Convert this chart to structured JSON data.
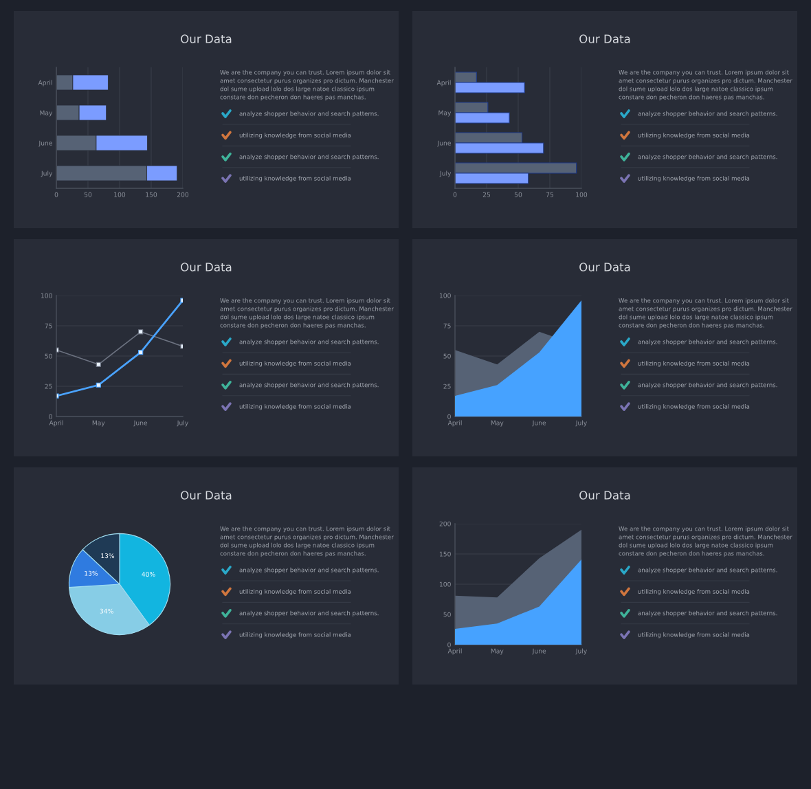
{
  "chart_data": [
    {
      "type": "bar",
      "orientation": "horizontal",
      "stacked": true,
      "title": "Our Data",
      "categories": [
        "April",
        "May",
        "June",
        "July"
      ],
      "series": [
        {
          "color": "#566275",
          "values": [
            26,
            36,
            63,
            143
          ]
        },
        {
          "color": "#7b9cff",
          "values": [
            56,
            43,
            81,
            48
          ]
        }
      ],
      "xlim": [
        0,
        200
      ],
      "xticks": [
        0,
        50,
        100,
        150,
        200
      ],
      "grid": "x",
      "legend": false,
      "annotations": [
        "We are the company you can trust. Lorem ipsum dolor sit",
        "amet consectetur purus organizes pro dictum. Manchester",
        "dol sume upload lolo dos large natoe classico ipsum",
        "constare don pecheron don haeres pas manchas.",
        "analyze shopper behavior and search patterns.",
        "utilizing knowledge from social media",
        "analyze shopper behavior and search patterns.",
        "utilizing knowledge from social media"
      ]
    },
    {
      "type": "bar",
      "orientation": "horizontal",
      "title": "Our Data",
      "categories": [
        "April",
        "May",
        "June",
        "July"
      ],
      "series": [
        {
          "color": "#566275",
          "values": [
            17,
            26,
            53,
            96
          ]
        },
        {
          "color": "#7b9cff",
          "values": [
            55,
            43,
            70,
            58
          ]
        }
      ],
      "xlim": [
        0,
        100
      ],
      "xticks": [
        0,
        25,
        50,
        75,
        100
      ],
      "grid": "x",
      "legend": false,
      "annotations": [
        "We are the company you can trust. Lorem ipsum dolor sit",
        "amet consectetur purus organizes pro dictum. Manchester",
        "dol sume upload lolo dos large natoe classico ipsum",
        "constare don pecheron don haeres pas manchas.",
        "analyze shopper behavior and search patterns.",
        "utilizing knowledge from social media",
        "analyze shopper behavior and search patterns.",
        "utilizing knowledge from social media"
      ]
    },
    {
      "type": "line",
      "title": "Our Data",
      "categories": [
        "April",
        "May",
        "June",
        "July"
      ],
      "marker": "square",
      "line_style": "solid",
      "series": [
        {
          "color": "#6c7280",
          "values": [
            55,
            43,
            70,
            58
          ]
        },
        {
          "color": "#4aa3ff",
          "values": [
            17,
            26,
            53,
            96
          ]
        }
      ],
      "ylim": [
        0,
        100
      ],
      "yticks": [
        0,
        25,
        50,
        75,
        100
      ],
      "grid": "y",
      "legend": false,
      "annotations": [
        "We are the company you can trust. Lorem ipsum dolor sit",
        "amet consectetur purus organizes pro dictum. Manchester",
        "dol sume upload lolo dos large natoe classico ipsum",
        "constare don pecheron don haeres pas manchas.",
        "analyze shopper behavior and search patterns.",
        "utilizing knowledge from social media",
        "analyze shopper behavior and search patterns.",
        "utilizing knowledge from social media"
      ]
    },
    {
      "type": "area",
      "title": "Our Data",
      "categories": [
        "April",
        "May",
        "June",
        "July"
      ],
      "series": [
        {
          "color": "#566275",
          "values": [
            55,
            43,
            70,
            58
          ]
        },
        {
          "color": "#46a2ff",
          "values": [
            17,
            26,
            53,
            96
          ]
        }
      ],
      "ylim": [
        0,
        100
      ],
      "yticks": [
        0,
        25,
        50,
        75,
        100
      ],
      "grid": "y",
      "legend": false,
      "annotations": [
        "We are the company you can trust. Lorem ipsum dolor sit",
        "amet consectetur purus organizes pro dictum. Manchester",
        "dol sume upload lolo dos large natoe classico ipsum",
        "constare don pecheron don haeres pas manchas.",
        "analyze shopper behavior and search patterns.",
        "utilizing knowledge from social media",
        "analyze shopper behavior and search patterns.",
        "utilizing knowledge from social media"
      ]
    },
    {
      "type": "pie",
      "title": "Our Data",
      "categories": [
        null,
        null,
        null,
        null
      ],
      "values": [
        40,
        34,
        13,
        13
      ],
      "value_labels": [
        "40%",
        "34%",
        "13%",
        "13%"
      ],
      "colors": [
        "#12b5e0",
        "#87cde6",
        "#2f7be0",
        "#1f3a55"
      ],
      "legend": false,
      "annotations": [
        "We are the company you can trust. Lorem ipsum dolor sit",
        "amet consectetur purus organizes pro dictum. Manchester",
        "dol sume upload lolo dos large natoe classico ipsum",
        "constare don pecheron don haeres pas manchas.",
        "analyze shopper behavior and search patterns.",
        "utilizing knowledge from social media",
        "analyze shopper behavior and search patterns.",
        "utilizing knowledge from social media"
      ]
    },
    {
      "type": "area",
      "title": "Our Data",
      "categories": [
        "April",
        "May",
        "June",
        "July"
      ],
      "series": [
        {
          "color": "#566275",
          "values": [
            81,
            78,
            143,
            190
          ]
        },
        {
          "color": "#46a2ff",
          "values": [
            26,
            35,
            63,
            141
          ]
        }
      ],
      "ylim": [
        0,
        200
      ],
      "yticks": [
        0,
        50,
        100,
        150,
        200
      ],
      "grid": "y",
      "legend": false,
      "annotations": [
        "We are the company you can trust. Lorem ipsum dolor sit",
        "amet consectetur purus organizes pro dictum. Manchester",
        "dol sume upload lolo dos large natoe classico ipsum",
        "constare don pecheron don haeres pas manchas.",
        "analyze shopper behavior and search patterns.",
        "utilizing knowledge from social media",
        "analyze shopper behavior and search patterns.",
        "utilizing knowledge from social media"
      ]
    }
  ]
}
